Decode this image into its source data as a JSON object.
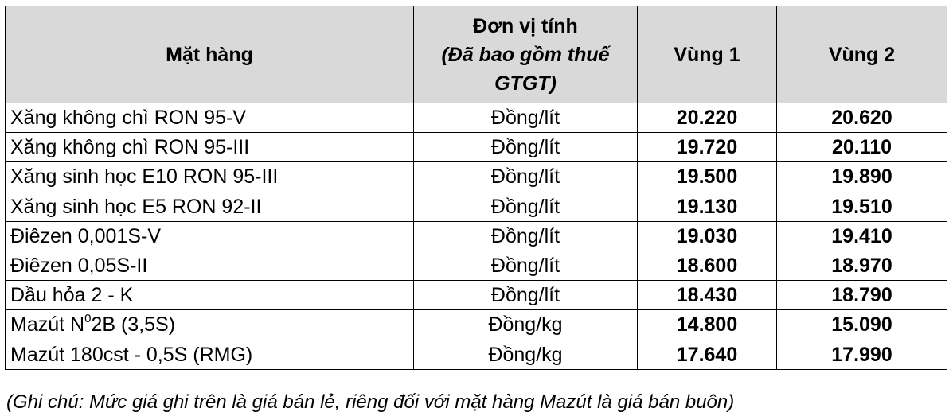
{
  "table": {
    "headers": {
      "item": "Mặt hàng",
      "unit_line1": "Đơn vị tính",
      "unit_line2": "(Đã bao gồm thuế",
      "unit_line3": "GTGT)",
      "zone1": "Vùng 1",
      "zone2": "Vùng 2"
    },
    "rows": [
      {
        "item": "Xăng không chì RON 95-V",
        "unit": "Đồng/lít",
        "zone1": "20.220",
        "zone2": "20.620"
      },
      {
        "item": "Xăng không chì RON 95-III",
        "unit": "Đồng/lít",
        "zone1": "19.720",
        "zone2": "20.110"
      },
      {
        "item": "Xăng sinh học E10 RON 95-III",
        "unit": "Đồng/lít",
        "zone1": "19.500",
        "zone2": "19.890"
      },
      {
        "item": "Xăng sinh học E5 RON 92-II",
        "unit": "Đồng/lít",
        "zone1": "19.130",
        "zone2": "19.510"
      },
      {
        "item": "Điêzen 0,001S-V",
        "unit": "Đồng/lít",
        "zone1": "19.030",
        "zone2": "19.410"
      },
      {
        "item": "Điêzen 0,05S-II",
        "unit": "Đồng/lít",
        "zone1": "18.600",
        "zone2": "18.970"
      },
      {
        "item": "Dầu hỏa 2 - K",
        "unit": "Đồng/lít",
        "zone1": "18.430",
        "zone2": "18.790"
      },
      {
        "item_pre": "Mazút N",
        "item_sup": "0",
        "item_post": "2B (3,5S)",
        "unit": "Đồng/kg",
        "zone1": "14.800",
        "zone2": "15.090"
      },
      {
        "item": "Mazút 180cst - 0,5S (RMG)",
        "unit": "Đồng/kg",
        "zone1": "17.640",
        "zone2": "17.990"
      }
    ]
  },
  "note": "(Ghi chú: Mức giá ghi trên là giá bán lẻ, riêng đối với mặt hàng Mazút là giá bán buôn)"
}
